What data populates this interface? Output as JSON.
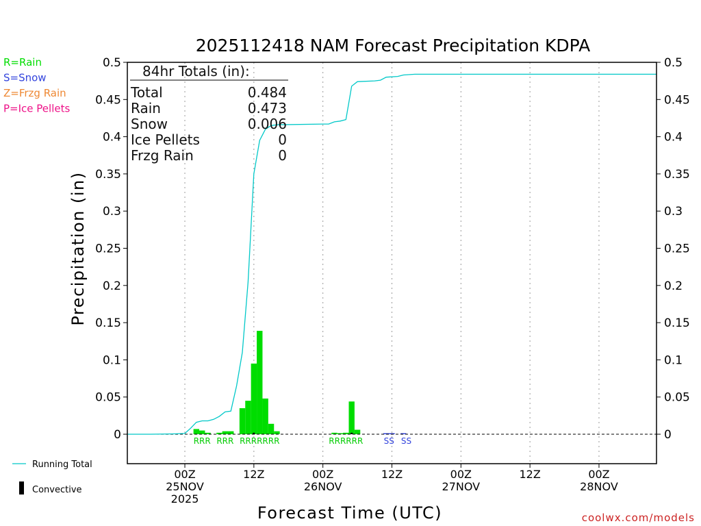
{
  "chart_data": {
    "type": "bar",
    "title": "2025112418 NAM Forecast Precipitation KDPA",
    "xlabel": "Forecast Time (UTC)",
    "ylabel": "Precipitation (in)",
    "ylim": [
      -0.04,
      0.5
    ],
    "yticks": [
      0,
      0.05,
      0.1,
      0.15,
      0.2,
      0.25,
      0.3,
      0.35,
      0.4,
      0.45,
      0.5
    ],
    "ytick_labels": [
      "0",
      "0.05",
      "0.1",
      "0.15",
      "0.2",
      "0.25",
      "0.3",
      "0.35",
      "0.4",
      "0.45",
      "0.5"
    ],
    "x_unit": "forecast hour",
    "xlim": [
      -4,
      88
    ],
    "xticks": [
      {
        "hour": 6,
        "lines": [
          "00Z",
          "25NOV",
          "2025"
        ]
      },
      {
        "hour": 18,
        "lines": [
          "12Z"
        ]
      },
      {
        "hour": 30,
        "lines": [
          "00Z",
          "26NOV"
        ]
      },
      {
        "hour": 42,
        "lines": [
          "12Z"
        ]
      },
      {
        "hour": 54,
        "lines": [
          "00Z",
          "27NOV"
        ]
      },
      {
        "hour": 66,
        "lines": [
          "12Z"
        ]
      },
      {
        "hour": 78,
        "lines": [
          "00Z",
          "28NOV"
        ]
      }
    ],
    "series": [
      {
        "name": "Rain",
        "color": "#00dd00",
        "bars": [
          {
            "hour": 8,
            "value": 0.007
          },
          {
            "hour": 9,
            "value": 0.005
          },
          {
            "hour": 10,
            "value": 0.002
          },
          {
            "hour": 12,
            "value": 0.002
          },
          {
            "hour": 13,
            "value": 0.004
          },
          {
            "hour": 14,
            "value": 0.004
          },
          {
            "hour": 16,
            "value": 0.035
          },
          {
            "hour": 17,
            "value": 0.045
          },
          {
            "hour": 18,
            "value": 0.095
          },
          {
            "hour": 19,
            "value": 0.139
          },
          {
            "hour": 20,
            "value": 0.048
          },
          {
            "hour": 21,
            "value": 0.014
          },
          {
            "hour": 22,
            "value": 0.004
          },
          {
            "hour": 32,
            "value": 0.002
          },
          {
            "hour": 33,
            "value": 0.001
          },
          {
            "hour": 34,
            "value": 0.002
          },
          {
            "hour": 35,
            "value": 0.044
          },
          {
            "hour": 36,
            "value": 0.006
          }
        ]
      },
      {
        "name": "Snow",
        "color": "#3344dd",
        "bars": [
          {
            "hour": 41,
            "value": 0.001
          },
          {
            "hour": 42,
            "value": 0.001
          },
          {
            "hour": 44,
            "value": 0.001
          }
        ]
      },
      {
        "name": "Convective",
        "color": "#000000",
        "bars": [
          {
            "hour": 18,
            "value": 0.002
          },
          {
            "hour": 35,
            "value": 0.002
          }
        ]
      },
      {
        "name": "Running Total",
        "color": "#00c8c8",
        "type": "line",
        "points": [
          [
            -4,
            0
          ],
          [
            0,
            0
          ],
          [
            4,
            0.0005
          ],
          [
            6,
            0.001
          ],
          [
            7,
            0.008
          ],
          [
            8,
            0.016
          ],
          [
            9,
            0.018
          ],
          [
            10,
            0.018
          ],
          [
            11,
            0.02
          ],
          [
            12,
            0.024
          ],
          [
            13,
            0.03
          ],
          [
            14,
            0.031
          ],
          [
            15,
            0.065
          ],
          [
            16,
            0.11
          ],
          [
            17,
            0.205
          ],
          [
            18,
            0.35
          ],
          [
            19,
            0.395
          ],
          [
            20,
            0.41
          ],
          [
            21,
            0.415
          ],
          [
            22,
            0.416
          ],
          [
            30,
            0.417
          ],
          [
            31,
            0.417
          ],
          [
            32,
            0.42
          ],
          [
            33,
            0.421
          ],
          [
            34,
            0.423
          ],
          [
            35,
            0.468
          ],
          [
            36,
            0.474
          ],
          [
            39,
            0.475
          ],
          [
            40,
            0.476
          ],
          [
            41,
            0.48
          ],
          [
            43,
            0.481
          ],
          [
            44,
            0.483
          ],
          [
            46,
            0.484
          ],
          [
            88,
            0.484
          ]
        ]
      }
    ],
    "precip_type_labels": [
      {
        "hour": 9,
        "text": "RRR",
        "color": "#00cc00"
      },
      {
        "hour": 13,
        "text": "RRR",
        "color": "#00cc00"
      },
      {
        "hour": 19,
        "text": "RRRRRRR",
        "color": "#00cc00"
      },
      {
        "hour": 34,
        "text": "RRRRRR",
        "color": "#00cc00"
      },
      {
        "hour": 41.5,
        "text": "SS",
        "color": "#3344dd"
      },
      {
        "hour": 44.5,
        "text": "SS",
        "color": "#3344dd"
      }
    ]
  },
  "totals": {
    "heading": "84hr Totals (in):",
    "rows": [
      {
        "label": "Total",
        "value": "0.484"
      },
      {
        "label": "Rain",
        "value": "0.473"
      },
      {
        "label": "Snow",
        "value": "0.006"
      },
      {
        "label": "Ice Pellets",
        "value": "0"
      },
      {
        "label": "Frzg Rain",
        "value": "0"
      }
    ]
  },
  "type_legend": [
    {
      "text": "R=Rain",
      "color": "#00dd00"
    },
    {
      "text": "S=Snow",
      "color": "#3344dd"
    },
    {
      "text": "Z=Frzg Rain",
      "color": "#ee8833"
    },
    {
      "text": "P=Ice Pellets",
      "color": "#ee1188"
    }
  ],
  "line_legend": {
    "running_total": "Running Total",
    "convective": "Convective"
  },
  "credit": "coolwx.com/models"
}
